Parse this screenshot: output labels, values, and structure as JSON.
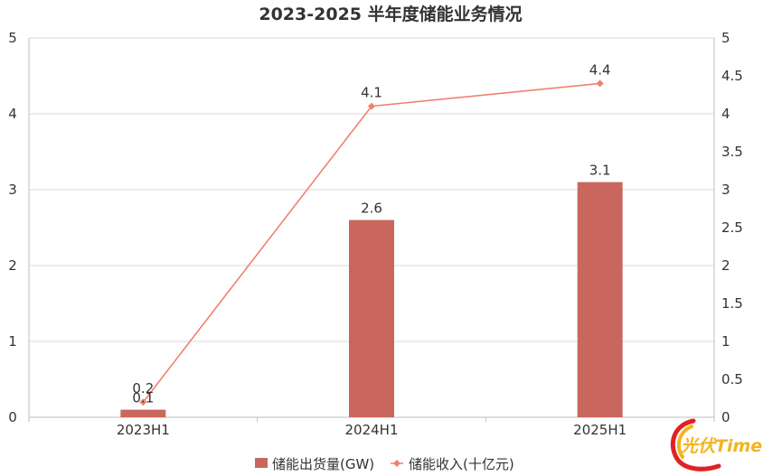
{
  "chart_data": {
    "type": "bar",
    "title": "2023-2025 半年度储能业务情况",
    "categories": [
      "2023H1",
      "2024H1",
      "2025H1"
    ],
    "series": [
      {
        "name": "储能出货量(GW)",
        "type": "bar",
        "axis": "left",
        "values": [
          0.1,
          2.6,
          3.1
        ],
        "labels": [
          "0.1",
          "2.6",
          "3.1"
        ],
        "color": "#c9675e"
      },
      {
        "name": "储能收入(十亿元)",
        "type": "line",
        "axis": "right",
        "values": [
          0.2,
          4.1,
          4.4
        ],
        "labels": [
          "0.2",
          "4.1",
          "4.4"
        ],
        "color": "#f0816f"
      }
    ],
    "y_left": {
      "min": 0,
      "max": 5,
      "ticks": [
        "0",
        "1",
        "2",
        "3",
        "4",
        "5"
      ]
    },
    "y_right": {
      "min": 0,
      "max": 5,
      "ticks": [
        "0",
        "0.5",
        "1",
        "1.5",
        "2",
        "2.5",
        "3",
        "3.5",
        "4",
        "4.5",
        "5"
      ]
    },
    "grid": true,
    "legend": "bottom-center"
  },
  "watermark": {
    "text": "光伏Time"
  },
  "colors": {
    "bar": "#c9675e",
    "line": "#f0816f",
    "grid": "#d9d9d9"
  }
}
